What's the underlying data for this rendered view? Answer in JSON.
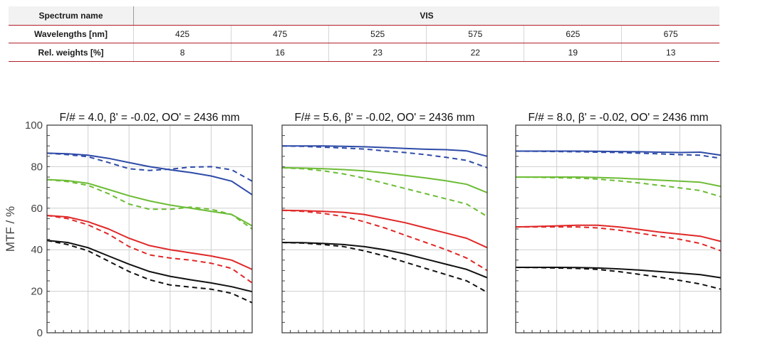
{
  "table": {
    "spectrum_label": "Spectrum name",
    "spectrum_value": "VIS",
    "wavelength_label": "Wavelengths [nm]",
    "wavelengths": [
      "425",
      "475",
      "525",
      "575",
      "625",
      "675"
    ],
    "weights_label": "Rel. weights [%]",
    "weights": [
      "8",
      "16",
      "23",
      "22",
      "19",
      "13"
    ],
    "accent_color": "#b01f2a"
  },
  "chart_data": [
    {
      "type": "line",
      "title": "F/# = 4.0, β' = -0.02, OO' = 2436 mm",
      "ylabel": "MTF / %",
      "xlabel": "",
      "ylim": [
        0,
        100
      ],
      "xlim": [
        0,
        1
      ],
      "yticks": [
        "0",
        "20",
        "40",
        "60",
        "80",
        "100"
      ],
      "grid": true,
      "x": [
        0,
        0.1,
        0.2,
        0.3,
        0.4,
        0.5,
        0.6,
        0.7,
        0.8,
        0.9,
        1.0
      ],
      "series": [
        {
          "color": "#2e4ba8",
          "dash": false,
          "values": [
            86.5,
            86.2,
            85.5,
            84,
            82,
            80,
            78.5,
            77.2,
            75.5,
            73,
            66.5
          ]
        },
        {
          "color": "#2e4ba8",
          "dash": true,
          "values": [
            86.5,
            85.8,
            84.8,
            82,
            79,
            78.2,
            78.8,
            79.8,
            80,
            78.5,
            73
          ]
        },
        {
          "color": "#6cbc35",
          "dash": false,
          "values": [
            73.8,
            73.3,
            72,
            69,
            66,
            63.5,
            61.5,
            60,
            58.5,
            57,
            51.5
          ]
        },
        {
          "color": "#6cbc35",
          "dash": true,
          "values": [
            73.8,
            72.8,
            71,
            67,
            62,
            59.5,
            59.5,
            60.5,
            59.5,
            57,
            50
          ]
        },
        {
          "color": "#e02828",
          "dash": false,
          "values": [
            56.5,
            55.8,
            53.5,
            50,
            45.5,
            42,
            40,
            38.5,
            37,
            35,
            30.5
          ]
        },
        {
          "color": "#e02828",
          "dash": true,
          "values": [
            56.5,
            55,
            52,
            47.5,
            41.5,
            37.5,
            36,
            35,
            33.5,
            31,
            24
          ]
        },
        {
          "color": "#111111",
          "dash": false,
          "values": [
            44.5,
            43.5,
            41,
            37,
            33,
            29.5,
            27.2,
            25.5,
            24,
            22.2,
            19.8
          ]
        },
        {
          "color": "#111111",
          "dash": true,
          "values": [
            44.5,
            42.5,
            39.5,
            34.5,
            29.5,
            25.5,
            23,
            22,
            21,
            19,
            14.5
          ]
        }
      ]
    },
    {
      "type": "line",
      "title": "F/# = 5.6, β' = -0.02, OO' = 2436 mm",
      "xlabel": "",
      "ylim": [
        0,
        100
      ],
      "xlim": [
        0,
        1
      ],
      "grid": true,
      "x": [
        0,
        0.1,
        0.2,
        0.3,
        0.4,
        0.5,
        0.6,
        0.7,
        0.8,
        0.9,
        1.0
      ],
      "series": [
        {
          "color": "#2e4ba8",
          "dash": false,
          "values": [
            90,
            90,
            90,
            89.8,
            89.6,
            89.2,
            88.8,
            88.4,
            88.2,
            87.6,
            85
          ]
        },
        {
          "color": "#2e4ba8",
          "dash": true,
          "values": [
            90,
            89.8,
            89.4,
            89,
            88.5,
            87.6,
            86.8,
            85.8,
            84.5,
            83,
            79.5
          ]
        },
        {
          "color": "#6cbc35",
          "dash": false,
          "values": [
            79.5,
            79.3,
            79,
            78.6,
            78,
            77,
            75.8,
            74.6,
            73.2,
            71.5,
            67.5
          ]
        },
        {
          "color": "#6cbc35",
          "dash": true,
          "values": [
            79.5,
            79,
            78,
            76.5,
            74.5,
            72,
            69.5,
            67,
            64.5,
            62,
            56
          ]
        },
        {
          "color": "#e02828",
          "dash": false,
          "values": [
            59,
            58.8,
            58.5,
            58,
            57,
            55,
            53,
            50.5,
            48,
            45.5,
            41
          ]
        },
        {
          "color": "#e02828",
          "dash": true,
          "values": [
            59,
            58.5,
            57.5,
            56,
            53.5,
            50.5,
            47,
            43.5,
            40,
            36,
            30
          ]
        },
        {
          "color": "#111111",
          "dash": false,
          "values": [
            43.5,
            43.4,
            43,
            42.5,
            41.5,
            40,
            38,
            35.5,
            33,
            30.5,
            26.5
          ]
        },
        {
          "color": "#111111",
          "dash": true,
          "values": [
            43.5,
            43.2,
            42.5,
            41.5,
            39.5,
            37,
            34,
            31,
            28,
            25,
            19.5
          ]
        }
      ]
    },
    {
      "type": "line",
      "title": "F/# = 8.0, β' = -0.02, OO' = 2436 mm",
      "xlabel": "",
      "ylim": [
        0,
        100
      ],
      "xlim": [
        0,
        1
      ],
      "grid": true,
      "x": [
        0,
        0.1,
        0.2,
        0.3,
        0.4,
        0.5,
        0.6,
        0.7,
        0.8,
        0.9,
        1.0
      ],
      "series": [
        {
          "color": "#2e4ba8",
          "dash": false,
          "values": [
            87.5,
            87.5,
            87.5,
            87.5,
            87.4,
            87.3,
            87.2,
            87,
            86.8,
            87,
            85.5
          ]
        },
        {
          "color": "#2e4ba8",
          "dash": true,
          "values": [
            87.5,
            87.4,
            87.3,
            87.2,
            87,
            86.8,
            86.5,
            86.2,
            85.8,
            85.5,
            84
          ]
        },
        {
          "color": "#6cbc35",
          "dash": false,
          "values": [
            75,
            75,
            75,
            75,
            74.8,
            74.5,
            74,
            73.5,
            73,
            72.5,
            70.5
          ]
        },
        {
          "color": "#6cbc35",
          "dash": true,
          "values": [
            75,
            74.9,
            74.7,
            74.5,
            74,
            73.2,
            72.2,
            71,
            69.8,
            68.5,
            65.5
          ]
        },
        {
          "color": "#e02828",
          "dash": false,
          "values": [
            51,
            51.2,
            51.5,
            51.8,
            51.8,
            51,
            49.8,
            48.5,
            47.5,
            46.5,
            44
          ]
        },
        {
          "color": "#e02828",
          "dash": true,
          "values": [
            51,
            51,
            51,
            51,
            50.5,
            49.5,
            48,
            46.5,
            45,
            43,
            39.5
          ]
        },
        {
          "color": "#111111",
          "dash": false,
          "values": [
            31.5,
            31.5,
            31.5,
            31.4,
            31.2,
            30.8,
            30.2,
            29.5,
            28.8,
            28,
            26.5
          ]
        },
        {
          "color": "#111111",
          "dash": true,
          "values": [
            31.5,
            31.4,
            31.2,
            31,
            30.5,
            29.5,
            28.2,
            26.8,
            25.2,
            23.5,
            21
          ]
        }
      ]
    }
  ]
}
